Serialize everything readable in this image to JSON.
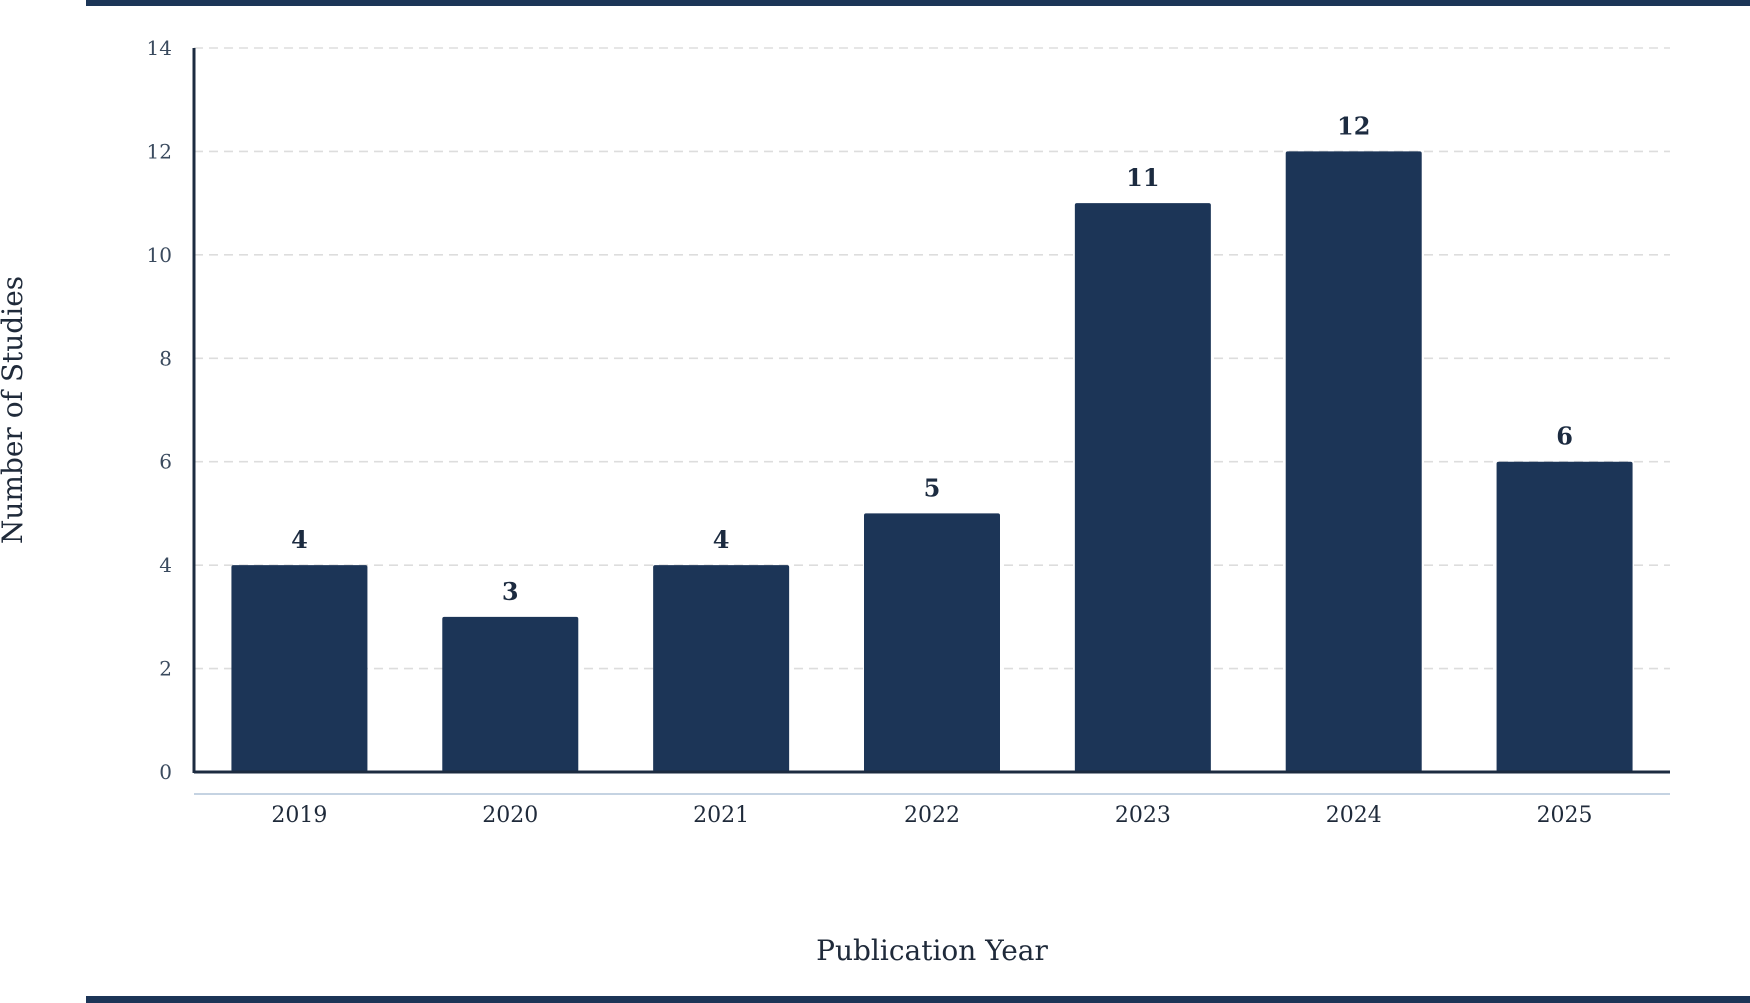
{
  "chart_data": {
    "type": "bar",
    "categories": [
      "2019",
      "2020",
      "2021",
      "2022",
      "2023",
      "2024",
      "2025"
    ],
    "values": [
      4,
      3,
      4,
      5,
      11,
      12,
      6
    ],
    "data_labels": [
      "4",
      "3",
      "4",
      "5",
      "11",
      "12",
      "6"
    ],
    "title": "",
    "xlabel": "Publication Year",
    "ylabel": "Number of Studies",
    "ylim": [
      0,
      14
    ],
    "yticks": [
      "0",
      "2",
      "4",
      "6",
      "8",
      "10",
      "12",
      "14"
    ],
    "grid": "horizontal dashed",
    "legend": "none",
    "colors": {
      "bar": "#1c3557",
      "axis": "#1c2b40",
      "grid": "#dddddd",
      "rule": "#1c3557"
    }
  }
}
